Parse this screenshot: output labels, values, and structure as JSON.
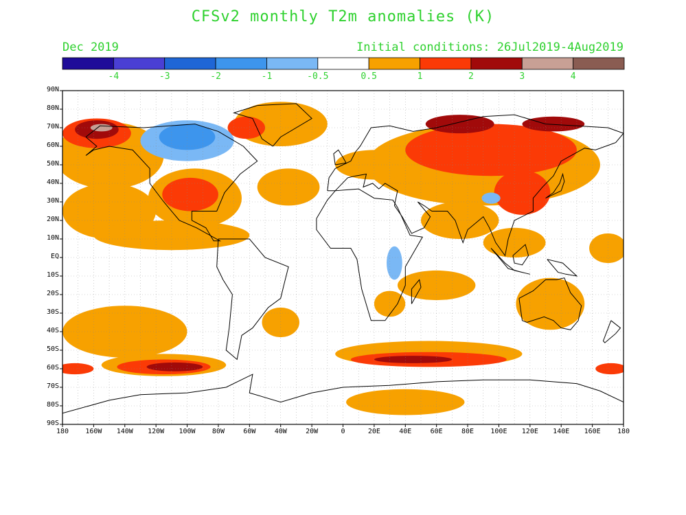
{
  "header": {
    "title": "CFSv2 monthly T2m anomalies (K)",
    "month": "Dec 2019",
    "initial_conditions": "Initial conditions: 26Jul2019-4Aug2019"
  },
  "colorbar": {
    "colors": [
      "#1f0c99",
      "#4a3fd4",
      "#1f66d6",
      "#3d95ed",
      "#7ab8f5",
      "#ffffff",
      "#f7a100",
      "#fb3a06",
      "#a10a0a",
      "#c8a095",
      "#8a5c52"
    ],
    "labels": [
      "-4",
      "-3",
      "-2",
      "-1",
      "-0.5",
      "0.5",
      "1",
      "2",
      "3",
      "4"
    ]
  },
  "axes": {
    "lat_labels": [
      "90N",
      "80N",
      "70N",
      "60N",
      "50N",
      "40N",
      "30N",
      "20N",
      "10N",
      "EQ",
      "10S",
      "20S",
      "30S",
      "40S",
      "50S",
      "60S",
      "70S",
      "80S",
      "90S"
    ],
    "lon_labels": [
      "180",
      "160W",
      "140W",
      "120W",
      "100W",
      "80W",
      "60W",
      "40W",
      "20W",
      "0",
      "20E",
      "40E",
      "60E",
      "80E",
      "100E",
      "120E",
      "140E",
      "160E",
      "180"
    ]
  },
  "anomaly_colors": {
    "warm_1": "#f7a100",
    "warm_2": "#fb3a06",
    "warm_3": "#a10a0a",
    "warm_4": "#c8a095",
    "warm_5": "#8a5c52",
    "cool_1": "#7ab8f5",
    "cool_2": "#3d95ed"
  },
  "regions": [
    {
      "name": "warm-north-pacific-belt",
      "level": 1,
      "lon": -150,
      "lat": 55,
      "rlon": 35,
      "rlat": 18
    },
    {
      "name": "warm-alaska",
      "level": 2,
      "lon": -158,
      "lat": 67,
      "rlon": 22,
      "rlat": 8
    },
    {
      "name": "warm-alaska-core",
      "level": 3,
      "lon": -158,
      "lat": 69,
      "rlon": 14,
      "rlat": 5
    },
    {
      "name": "warm-alaska-peak",
      "level": 4,
      "lon": -155,
      "lat": 70,
      "rlon": 7,
      "rlat": 2
    },
    {
      "name": "warm-east-pacific",
      "level": 1,
      "lon": -150,
      "lat": 25,
      "rlon": 30,
      "rlat": 15
    },
    {
      "name": "warm-us-mexico",
      "level": 1,
      "lon": -95,
      "lat": 32,
      "rlon": 30,
      "rlat": 16
    },
    {
      "name": "warm-us",
      "level": 2,
      "lon": -98,
      "lat": 34,
      "rlon": 18,
      "rlat": 9
    },
    {
      "name": "warm-tropical-east-pacific",
      "level": 1,
      "lon": -110,
      "lat": 12,
      "rlon": 50,
      "rlat": 8
    },
    {
      "name": "warm-greenland-sea",
      "level": 1,
      "lon": -40,
      "lat": 72,
      "rlon": 30,
      "rlat": 12
    },
    {
      "name": "warm-greenland",
      "level": 2,
      "lon": -62,
      "lat": 70,
      "rlon": 12,
      "rlat": 6
    },
    {
      "name": "warm-north-atlantic",
      "level": 1,
      "lon": -35,
      "lat": 38,
      "rlon": 20,
      "rlat": 10
    },
    {
      "name": "warm-eurasia",
      "level": 1,
      "lon": 90,
      "lat": 50,
      "rlon": 75,
      "rlat": 22
    },
    {
      "name": "warm-siberia",
      "level": 2,
      "lon": 95,
      "lat": 58,
      "rlon": 55,
      "rlat": 14
    },
    {
      "name": "warm-siberia-core",
      "level": 3,
      "lon": 75,
      "lat": 72,
      "rlon": 22,
      "rlat": 5
    },
    {
      "name": "warm-east-siberia-core",
      "level": 3,
      "lon": 135,
      "lat": 72,
      "rlon": 20,
      "rlat": 4
    },
    {
      "name": "warm-east-asia",
      "level": 2,
      "lon": 115,
      "lat": 35,
      "rlon": 18,
      "rlat": 12
    },
    {
      "name": "warm-north-africa",
      "level": 1,
      "lon": 20,
      "lat": 50,
      "rlon": 25,
      "rlat": 8
    },
    {
      "name": "warm-arabia-india",
      "level": 1,
      "lon": 75,
      "lat": 20,
      "rlon": 25,
      "rlat": 10
    },
    {
      "name": "warm-south-east-asia",
      "level": 1,
      "lon": 110,
      "lat": 8,
      "rlon": 20,
      "rlat": 8
    },
    {
      "name": "warm-indian-ocean",
      "level": 1,
      "lon": 60,
      "lat": -15,
      "rlon": 25,
      "rlat": 8
    },
    {
      "name": "warm-southern-africa",
      "level": 1,
      "lon": 30,
      "lat": -25,
      "rlon": 10,
      "rlat": 7
    },
    {
      "name": "warm-australia",
      "level": 1,
      "lon": 133,
      "lat": -25,
      "rlon": 22,
      "rlat": 14
    },
    {
      "name": "warm-west-pacific-tropics",
      "level": 1,
      "lon": 170,
      "lat": 5,
      "rlon": 12,
      "rlat": 8
    },
    {
      "name": "warm-south-pacific",
      "level": 1,
      "lon": -140,
      "lat": -40,
      "rlon": 40,
      "rlat": 14
    },
    {
      "name": "warm-south-america-east",
      "level": 1,
      "lon": -40,
      "lat": -35,
      "rlon": 12,
      "rlat": 8
    },
    {
      "name": "warm-southern-ocean-pacific",
      "level": 1,
      "lon": -115,
      "lat": -58,
      "rlon": 40,
      "rlat": 6
    },
    {
      "name": "warm-southern-ocean-pacific-2",
      "level": 2,
      "lon": -115,
      "lat": -59,
      "rlon": 30,
      "rlat": 4
    },
    {
      "name": "warm-southern-ocean-pacific-3",
      "level": 3,
      "lon": -108,
      "lat": -59,
      "rlon": 18,
      "rlat": 2.4
    },
    {
      "name": "warm-southern-ocean-indian",
      "level": 1,
      "lon": 55,
      "lat": -52,
      "rlon": 60,
      "rlat": 7
    },
    {
      "name": "warm-southern-ocean-indian-2",
      "level": 2,
      "lon": 55,
      "lat": -55,
      "rlon": 50,
      "rlat": 4
    },
    {
      "name": "warm-southern-ocean-indian-3",
      "level": 3,
      "lon": 45,
      "lat": -55,
      "rlon": 25,
      "rlat": 2
    },
    {
      "name": "warm-southern-ocean-west",
      "level": 2,
      "lon": -172,
      "lat": -60,
      "rlon": 12,
      "rlat": 3
    },
    {
      "name": "warm-southern-ocean-east",
      "level": 2,
      "lon": 172,
      "lat": -60,
      "rlon": 10,
      "rlat": 3
    },
    {
      "name": "warm-antarctica",
      "level": 1,
      "lon": 40,
      "lat": -78,
      "rlon": 38,
      "rlat": 7
    },
    {
      "name": "cool-canada",
      "level": -1,
      "lon": -100,
      "lat": 63,
      "rlon": 30,
      "rlat": 11
    },
    {
      "name": "cool-canada-core",
      "level": -2,
      "lon": -100,
      "lat": 65,
      "rlon": 18,
      "rlat": 7
    },
    {
      "name": "cool-east-africa",
      "level": -1,
      "lon": 33,
      "lat": -3,
      "rlon": 5,
      "rlat": 9
    },
    {
      "name": "cool-tibet",
      "level": -1,
      "lon": 95,
      "lat": 32,
      "rlon": 6,
      "rlat": 3
    }
  ],
  "coastlines": [
    {
      "name": "north-america",
      "points": [
        [
          -165,
          65
        ],
        [
          -156,
          71
        ],
        [
          -128,
          70
        ],
        [
          -95,
          72
        ],
        [
          -80,
          68
        ],
        [
          -64,
          60
        ],
        [
          -55,
          52
        ],
        [
          -66,
          45
        ],
        [
          -76,
          35
        ],
        [
          -81,
          25
        ],
        [
          -97,
          25
        ],
        [
          -97,
          20
        ],
        [
          -88,
          16
        ],
        [
          -83,
          9
        ],
        [
          -79,
          9
        ],
        [
          -94,
          16
        ],
        [
          -105,
          20
        ],
        [
          -115,
          30
        ],
        [
          -124,
          40
        ],
        [
          -124,
          48
        ],
        [
          -135,
          58
        ],
        [
          -150,
          60
        ],
        [
          -160,
          58
        ],
        [
          -165,
          55
        ],
        [
          -158,
          60
        ],
        [
          -165,
          65
        ]
      ]
    },
    {
      "name": "greenland",
      "points": [
        [
          -55,
          82
        ],
        [
          -30,
          83
        ],
        [
          -20,
          75
        ],
        [
          -40,
          65
        ],
        [
          -45,
          60
        ],
        [
          -52,
          64
        ],
        [
          -58,
          75
        ],
        [
          -70,
          78
        ],
        [
          -55,
          82
        ]
      ]
    },
    {
      "name": "south-america",
      "points": [
        [
          -80,
          10
        ],
        [
          -60,
          10
        ],
        [
          -50,
          0
        ],
        [
          -35,
          -5
        ],
        [
          -38,
          -15
        ],
        [
          -40,
          -22
        ],
        [
          -48,
          -27
        ],
        [
          -58,
          -38
        ],
        [
          -65,
          -42
        ],
        [
          -68,
          -55
        ],
        [
          -75,
          -50
        ],
        [
          -73,
          -38
        ],
        [
          -71,
          -20
        ],
        [
          -77,
          -12
        ],
        [
          -81,
          -5
        ],
        [
          -80,
          10
        ]
      ]
    },
    {
      "name": "africa",
      "points": [
        [
          -17,
          21
        ],
        [
          -10,
          31
        ],
        [
          -5,
          36
        ],
        [
          10,
          37
        ],
        [
          20,
          32
        ],
        [
          32,
          31
        ],
        [
          35,
          27
        ],
        [
          43,
          12
        ],
        [
          51,
          11
        ],
        [
          40,
          -5
        ],
        [
          40,
          -15
        ],
        [
          35,
          -25
        ],
        [
          27,
          -34
        ],
        [
          18,
          -34
        ],
        [
          12,
          -17
        ],
        [
          9,
          -1
        ],
        [
          5,
          5
        ],
        [
          -8,
          5
        ],
        [
          -17,
          15
        ],
        [
          -17,
          21
        ]
      ]
    },
    {
      "name": "eurasia",
      "points": [
        [
          -10,
          36
        ],
        [
          -9,
          43
        ],
        [
          -5,
          48
        ],
        [
          5,
          52
        ],
        [
          8,
          57
        ],
        [
          11,
          60
        ],
        [
          18,
          70
        ],
        [
          30,
          71
        ],
        [
          45,
          68
        ],
        [
          60,
          70
        ],
        [
          75,
          73
        ],
        [
          90,
          76
        ],
        [
          110,
          77
        ],
        [
          130,
          72
        ],
        [
          150,
          71
        ],
        [
          170,
          70
        ],
        [
          180,
          67
        ],
        [
          175,
          62
        ],
        [
          162,
          58
        ],
        [
          155,
          59
        ],
        [
          140,
          52
        ],
        [
          135,
          44
        ],
        [
          128,
          38
        ],
        [
          122,
          32
        ],
        [
          122,
          25
        ],
        [
          110,
          20
        ],
        [
          106,
          10
        ],
        [
          104,
          1
        ],
        [
          98,
          8
        ],
        [
          94,
          16
        ],
        [
          90,
          22
        ],
        [
          80,
          15
        ],
        [
          77,
          8
        ],
        [
          72,
          20
        ],
        [
          67,
          25
        ],
        [
          57,
          25
        ],
        [
          52,
          28
        ],
        [
          48,
          30
        ],
        [
          56,
          22
        ],
        [
          52,
          16
        ],
        [
          44,
          13
        ],
        [
          38,
          22
        ],
        [
          33,
          28
        ],
        [
          35,
          36
        ],
        [
          27,
          40
        ],
        [
          23,
          37
        ],
        [
          19,
          40
        ],
        [
          13,
          38
        ],
        [
          15,
          45
        ],
        [
          8,
          44
        ],
        [
          3,
          43
        ],
        [
          -5,
          36
        ],
        [
          -10,
          36
        ]
      ]
    },
    {
      "name": "australia",
      "points": [
        [
          113,
          -22
        ],
        [
          122,
          -18
        ],
        [
          130,
          -12
        ],
        [
          137,
          -12
        ],
        [
          142,
          -11
        ],
        [
          146,
          -19
        ],
        [
          153,
          -26
        ],
        [
          151,
          -34
        ],
        [
          146,
          -39
        ],
        [
          140,
          -38
        ],
        [
          135,
          -34
        ],
        [
          129,
          -32
        ],
        [
          118,
          -35
        ],
        [
          115,
          -34
        ],
        [
          113,
          -22
        ]
      ]
    },
    {
      "name": "antarctica",
      "points": [
        [
          -180,
          -84
        ],
        [
          -150,
          -77
        ],
        [
          -130,
          -74
        ],
        [
          -100,
          -73
        ],
        [
          -75,
          -70
        ],
        [
          -58,
          -63
        ],
        [
          -60,
          -73
        ],
        [
          -40,
          -78
        ],
        [
          -20,
          -73
        ],
        [
          0,
          -70
        ],
        [
          30,
          -69
        ],
        [
          60,
          -67
        ],
        [
          90,
          -66
        ],
        [
          120,
          -66
        ],
        [
          150,
          -68
        ],
        [
          165,
          -72
        ],
        [
          180,
          -78
        ]
      ]
    },
    {
      "name": "madagascar",
      "points": [
        [
          44,
          -25
        ],
        [
          50,
          -16
        ],
        [
          49,
          -12
        ],
        [
          44,
          -17
        ],
        [
          44,
          -25
        ]
      ]
    },
    {
      "name": "japan",
      "points": [
        [
          130,
          32
        ],
        [
          135,
          34
        ],
        [
          140,
          36
        ],
        [
          142,
          41
        ],
        [
          141,
          45
        ],
        [
          139,
          40
        ],
        [
          135,
          35
        ],
        [
          130,
          32
        ]
      ]
    },
    {
      "name": "uk",
      "points": [
        [
          -5,
          50
        ],
        [
          2,
          51
        ],
        [
          0,
          54
        ],
        [
          -3,
          58
        ],
        [
          -6,
          56
        ],
        [
          -5,
          50
        ]
      ]
    },
    {
      "name": "new-zealand",
      "points": [
        [
          172,
          -34
        ],
        [
          178,
          -38
        ],
        [
          175,
          -41
        ],
        [
          168,
          -46
        ],
        [
          167,
          -45
        ],
        [
          172,
          -34
        ]
      ]
    },
    {
      "name": "indonesia",
      "points": [
        [
          95,
          5
        ],
        [
          106,
          -6
        ],
        [
          115,
          -8
        ],
        [
          120,
          -9
        ],
        [
          110,
          -7
        ],
        [
          104,
          -3
        ],
        [
          95,
          5
        ]
      ]
    },
    {
      "name": "borneo",
      "points": [
        [
          109,
          1
        ],
        [
          117,
          7
        ],
        [
          119,
          1
        ],
        [
          115,
          -4
        ],
        [
          110,
          -3
        ],
        [
          109,
          1
        ]
      ]
    },
    {
      "name": "new-guinea",
      "points": [
        [
          131,
          -1
        ],
        [
          141,
          -3
        ],
        [
          150,
          -10
        ],
        [
          143,
          -9
        ],
        [
          138,
          -8
        ],
        [
          131,
          -1
        ]
      ]
    }
  ]
}
